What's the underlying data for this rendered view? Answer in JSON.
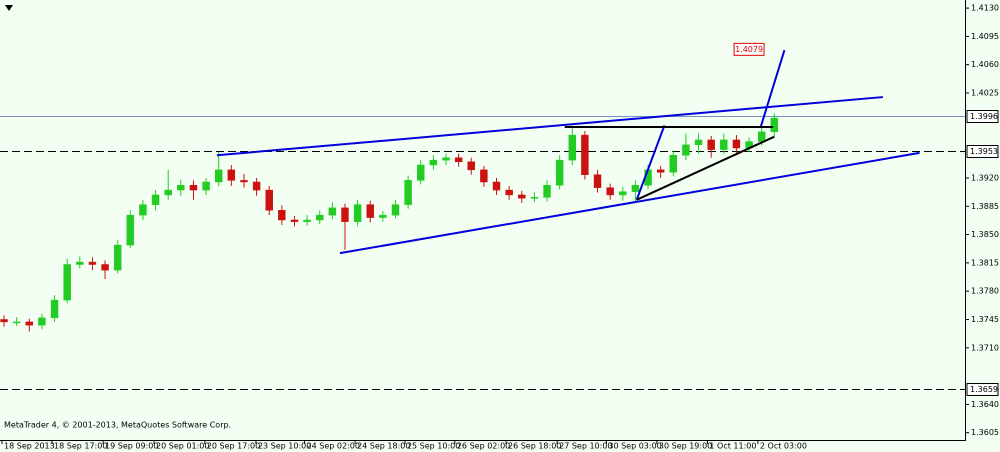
{
  "chart_data": {
    "type": "candlestick",
    "watermark": "MetaTrader 4, © 2001-2013, MetaQuotes Software Corp.",
    "up_color": "#22cc22",
    "down_color": "#cc1111",
    "background": "#f4fff4",
    "xlim": [
      -0.32,
      76.1
    ],
    "ylim": [
      1.3596,
      1.414
    ],
    "yticks": [
      {
        "value": 1.413,
        "label": "1.4130"
      },
      {
        "value": 1.4095,
        "label": "1.4095"
      },
      {
        "value": 1.406,
        "label": "1.4060"
      },
      {
        "value": 1.4025,
        "label": "1.4025"
      },
      {
        "value": 1.392,
        "label": "1.3920"
      },
      {
        "value": 1.3885,
        "label": "1.3885"
      },
      {
        "value": 1.385,
        "label": "1.3850"
      },
      {
        "value": 1.3815,
        "label": "1.3815"
      },
      {
        "value": 1.378,
        "label": "1.3780"
      },
      {
        "value": 1.3745,
        "label": "1.3745"
      },
      {
        "value": 1.371,
        "label": "1.3710"
      },
      {
        "value": 1.364,
        "label": "1.3640"
      },
      {
        "value": 1.3605,
        "label": "1.3605"
      }
    ],
    "xticks": [
      {
        "value": -0.16,
        "label": "18 Sep 2013"
      },
      {
        "value": 3.8,
        "label": "18 Sep 17:00"
      },
      {
        "value": 7.84,
        "label": "19 Sep 09:00"
      },
      {
        "value": 11.88,
        "label": "20 Sep 01:00"
      },
      {
        "value": 15.9,
        "label": "20 Sep 17:00"
      },
      {
        "value": 19.95,
        "label": "23 Sep 10:00"
      },
      {
        "value": 23.8,
        "label": "24 Sep 02:00"
      },
      {
        "value": 27.8,
        "label": "24 Sep 18:00"
      },
      {
        "value": 31.75,
        "label": "25 Sep 10:00"
      },
      {
        "value": 35.7,
        "label": "26 Sep 02:00"
      },
      {
        "value": 39.75,
        "label": "26 Sep 18:00"
      },
      {
        "value": 43.8,
        "label": "27 Sep 10:00"
      },
      {
        "value": 47.7,
        "label": "30 Sep 03:00"
      },
      {
        "value": 51.7,
        "label": "30 Sep 19:00"
      },
      {
        "value": 55.7,
        "label": "1 Oct 11:00"
      },
      {
        "value": 59.7,
        "label": "2 Oct 03:00"
      }
    ],
    "ohlc": [
      [
        1.3745,
        1.375,
        1.3736,
        1.3742
      ],
      [
        1.3742,
        1.3748,
        1.3737,
        1.3742
      ],
      [
        1.3742,
        1.3746,
        1.373,
        1.3738
      ],
      [
        1.3738,
        1.3752,
        1.3733,
        1.3747
      ],
      [
        1.3747,
        1.3775,
        1.3742,
        1.3769
      ],
      [
        1.3769,
        1.382,
        1.3765,
        1.3813
      ],
      [
        1.3813,
        1.3823,
        1.3808,
        1.3816
      ],
      [
        1.3816,
        1.3822,
        1.3806,
        1.3813
      ],
      [
        1.3813,
        1.3818,
        1.3795,
        1.3806
      ],
      [
        1.3806,
        1.3843,
        1.3802,
        1.3837
      ],
      [
        1.3837,
        1.388,
        1.3833,
        1.3874
      ],
      [
        1.3874,
        1.3893,
        1.3868,
        1.3887
      ],
      [
        1.3887,
        1.3905,
        1.388,
        1.3899
      ],
      [
        1.3899,
        1.393,
        1.3893,
        1.3905
      ],
      [
        1.3905,
        1.3918,
        1.3898,
        1.3911
      ],
      [
        1.3911,
        1.3917,
        1.3893,
        1.3905
      ],
      [
        1.3905,
        1.392,
        1.3899,
        1.3915
      ],
      [
        1.3915,
        1.3952,
        1.391,
        1.393
      ],
      [
        1.393,
        1.3936,
        1.391,
        1.3917
      ],
      [
        1.3917,
        1.3925,
        1.3908,
        1.3915
      ],
      [
        1.3915,
        1.392,
        1.3898,
        1.3905
      ],
      [
        1.3905,
        1.391,
        1.3874,
        1.388
      ],
      [
        1.388,
        1.3886,
        1.3862,
        1.3868
      ],
      [
        1.3868,
        1.3873,
        1.386,
        1.3866
      ],
      [
        1.3866,
        1.3874,
        1.3861,
        1.3868
      ],
      [
        1.3868,
        1.388,
        1.3863,
        1.3874
      ],
      [
        1.3874,
        1.389,
        1.3869,
        1.3883
      ],
      [
        1.3883,
        1.3888,
        1.3831,
        1.3866
      ],
      [
        1.3866,
        1.3893,
        1.386,
        1.3887
      ],
      [
        1.3887,
        1.3892,
        1.3865,
        1.3871
      ],
      [
        1.3871,
        1.3879,
        1.3866,
        1.3874
      ],
      [
        1.3874,
        1.3893,
        1.387,
        1.3887
      ],
      [
        1.3887,
        1.3923,
        1.3882,
        1.3917
      ],
      [
        1.3917,
        1.3942,
        1.3912,
        1.3936
      ],
      [
        1.3936,
        1.3948,
        1.393,
        1.3942
      ],
      [
        1.3942,
        1.395,
        1.3936,
        1.3945
      ],
      [
        1.3945,
        1.395,
        1.3934,
        1.394
      ],
      [
        1.394,
        1.3945,
        1.3924,
        1.393
      ],
      [
        1.393,
        1.3935,
        1.3909,
        1.3915
      ],
      [
        1.3915,
        1.392,
        1.3899,
        1.3905
      ],
      [
        1.3905,
        1.391,
        1.3893,
        1.3899
      ],
      [
        1.3899,
        1.3904,
        1.3889,
        1.3895
      ],
      [
        1.3895,
        1.3902,
        1.389,
        1.3896
      ],
      [
        1.3896,
        1.3917,
        1.3891,
        1.3911
      ],
      [
        1.3911,
        1.3948,
        1.3906,
        1.3942
      ],
      [
        1.3942,
        1.3985,
        1.3936,
        1.3973
      ],
      [
        1.3973,
        1.3978,
        1.3918,
        1.3924
      ],
      [
        1.3924,
        1.393,
        1.3902,
        1.3908
      ],
      [
        1.3908,
        1.3913,
        1.3893,
        1.3899
      ],
      [
        1.3899,
        1.3909,
        1.3892,
        1.3903
      ],
      [
        1.3903,
        1.3917,
        1.389,
        1.3911
      ],
      [
        1.3911,
        1.3936,
        1.3906,
        1.393
      ],
      [
        1.393,
        1.3935,
        1.392,
        1.3927
      ],
      [
        1.3927,
        1.3954,
        1.3922,
        1.3948
      ],
      [
        1.3948,
        1.3975,
        1.3942,
        1.3961
      ],
      [
        1.3961,
        1.3975,
        1.395,
        1.3967
      ],
      [
        1.3967,
        1.3972,
        1.3945,
        1.3955
      ],
      [
        1.3955,
        1.3975,
        1.395,
        1.3967
      ],
      [
        1.3967,
        1.3973,
        1.395,
        1.3957
      ],
      [
        1.3957,
        1.397,
        1.3952,
        1.3965
      ],
      [
        1.3965,
        1.3983,
        1.396,
        1.3977
      ],
      [
        1.3977,
        1.4,
        1.3972,
        1.3994
      ]
    ],
    "trend_lines": [
      {
        "color": "#0000dd",
        "x": [
          16.86,
          69.6
        ],
        "y": [
          1.3948,
          1.402
        ]
      },
      {
        "color": "#0000dd",
        "x": [
          26.6,
          72.5
        ],
        "y": [
          1.3827,
          1.3951
        ]
      },
      {
        "color": "#0000dd",
        "x": [
          50.1,
          52.3
        ],
        "y": [
          1.3893,
          1.3985
        ]
      },
      {
        "color": "#0000dd",
        "x": [
          59.9,
          61.8
        ],
        "y": [
          1.3982,
          1.4078
        ]
      },
      {
        "color": "#000000",
        "x": [
          44.4,
          60.9
        ],
        "y": [
          1.3983,
          1.3983
        ]
      },
      {
        "color": "#000000",
        "x": [
          50.1,
          61.0
        ],
        "y": [
          1.3893,
          1.3971
        ]
      }
    ],
    "price_lines": [
      {
        "value": 1.3996,
        "color": "#7a8cc0",
        "dashed": false
      },
      {
        "value": 1.3953,
        "color": "#000000",
        "dashed": true
      },
      {
        "value": 1.3659,
        "color": "#000000",
        "dashed": true
      }
    ],
    "price_label": {
      "value": 1.4079,
      "x": 59.0,
      "color": "#e00000"
    }
  }
}
